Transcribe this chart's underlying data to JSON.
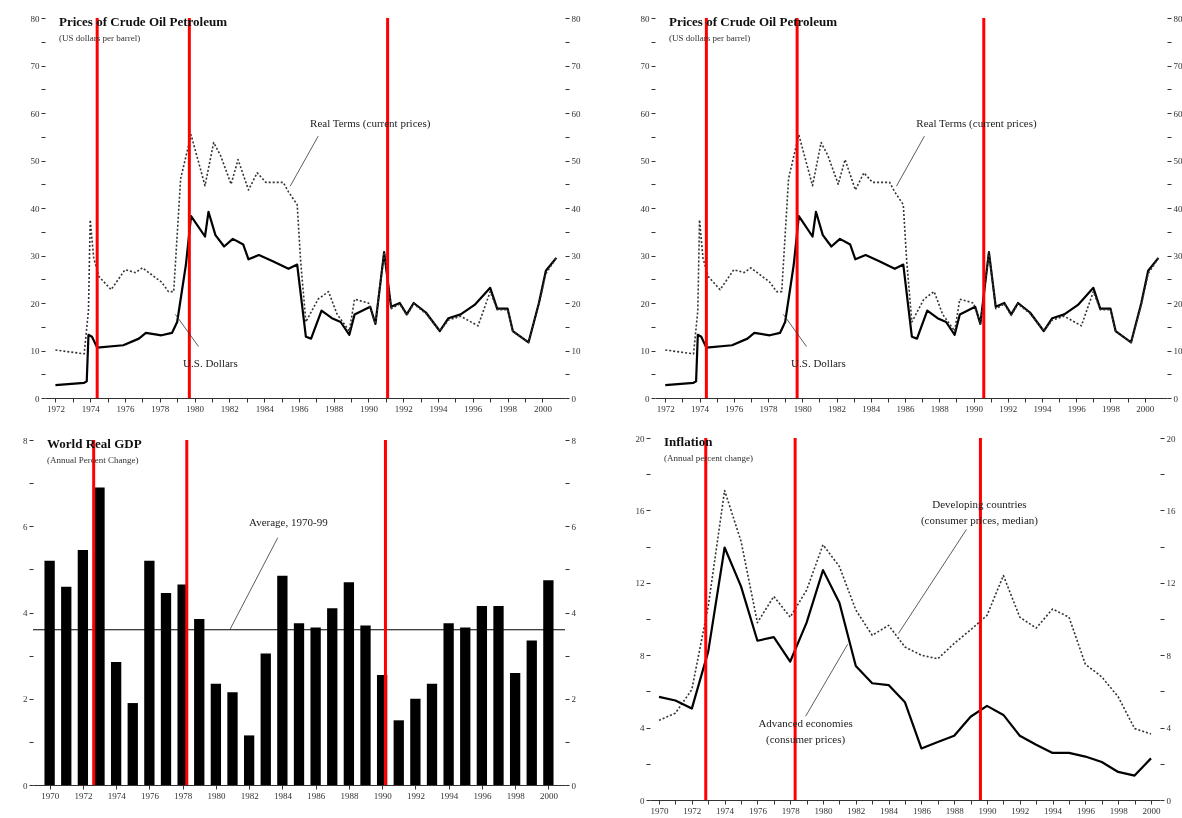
{
  "chart_data": [
    {
      "type": "line",
      "title": "Prices of Crude Oil Petroleum",
      "subtitle": "(US dollars per barrel)",
      "series": [
        {
          "color": "#000000",
          "line_style": "solid",
          "x": [
            1972,
            1973.65,
            1973.8,
            1973.9,
            1974.1,
            1974.4,
            1975.9,
            1976.8,
            1977.2,
            1978.1,
            1978.7,
            1979.0,
            1979.5,
            1979.8,
            1980.6,
            1980.8,
            1981.2,
            1981.7,
            1982.2,
            1982.8,
            1983.1,
            1983.7,
            1984.5,
            1985.4,
            1985.9,
            1986.4,
            1986.7,
            1987.3,
            1987.9,
            1988.4,
            1988.9,
            1989.2,
            1990.1,
            1990.4,
            1990.9,
            1991.3,
            1991.8,
            1992.2,
            1992.6,
            1993.3,
            1994.1,
            1994.6,
            1995.3,
            1996.1,
            1997.0,
            1997.4,
            1998.0,
            1998.3,
            1999.2,
            1999.8,
            2000.2,
            2000.8
          ],
          "values": [
            2.7,
            3.2,
            3.5,
            13.3,
            12.9,
            10.6,
            11.1,
            12.5,
            13.7,
            13.2,
            13.7,
            16,
            28,
            38.3,
            34,
            39.2,
            34.3,
            31.9,
            33.5,
            32.3,
            29.2,
            30.1,
            28.8,
            27.2,
            28.1,
            12.9,
            12.5,
            18.4,
            16.8,
            16,
            13.3,
            17.6,
            19.2,
            15.6,
            30.7,
            19.2,
            20,
            17.6,
            20,
            18,
            14.1,
            16.8,
            17.6,
            19.6,
            23.2,
            18.8,
            18.8,
            14.1,
            11.7,
            20,
            26.8,
            29.5
          ]
        },
        {
          "color": "#333333",
          "line_style": "dotted",
          "x": [
            1972,
            1973.65,
            1973.9,
            1974.0,
            1974.2,
            1974.5,
            1975.2,
            1976.0,
            1976.6,
            1977.0,
            1978.1,
            1978.5,
            1978.8,
            1979.2,
            1979.8,
            1980.6,
            1981.1,
            1981.5,
            1982.1,
            1982.5,
            1983.1,
            1983.6,
            1984.1,
            1985.1,
            1985.4,
            1985.9,
            1986.1,
            1986.4,
            1987.1,
            1987.7,
            1988.2,
            1988.9,
            1989.2,
            1990.0,
            1990.4,
            1990.9,
            1991.3,
            1991.8,
            1992.2,
            1992.6,
            1993.3,
            1994.1,
            1994.6,
            1995.3,
            1996.3,
            1997.0,
            1997.4,
            1998.0,
            1998.3,
            1999.2,
            1999.8,
            2000.2,
            2000.8
          ],
          "values": [
            10.1,
            9.3,
            18.4,
            37.5,
            29.5,
            25.6,
            22.8,
            27,
            26.4,
            27.4,
            24.4,
            22.4,
            22.4,
            46.2,
            55.4,
            44.7,
            53.8,
            51,
            45,
            50.2,
            43.8,
            47.4,
            45.4,
            45.4,
            43.4,
            40.7,
            28.8,
            16,
            20.8,
            22.4,
            17.6,
            14.1,
            20.8,
            20,
            15.6,
            30.7,
            18.8,
            19.8,
            17.4,
            19.8,
            17.8,
            14.1,
            16.4,
            17.2,
            15.2,
            22.4,
            18.6,
            18.6,
            14.0,
            11.7,
            19.6,
            26.2,
            29.5
          ]
        }
      ],
      "xlim": [
        1971.4,
        2001.3
      ],
      "xticks": [
        1972,
        {
          "value": 1973,
          "label": null
        },
        1974,
        {
          "value": 1975,
          "label": null
        },
        1976,
        {
          "value": 1977,
          "label": null
        },
        1978,
        {
          "value": 1979,
          "label": null
        },
        1980,
        {
          "value": 1981,
          "label": null
        },
        1982,
        {
          "value": 1983,
          "label": null
        },
        1984,
        {
          "value": 1985,
          "label": null
        },
        1986,
        {
          "value": 1987,
          "label": null
        },
        1988,
        {
          "value": 1989,
          "label": null
        },
        1990,
        {
          "value": 1991,
          "label": null
        },
        1992,
        {
          "value": 1993,
          "label": null
        },
        1994,
        {
          "value": 1995,
          "label": null
        },
        1996,
        {
          "value": 1997,
          "label": null
        },
        1998,
        {
          "value": 1999,
          "label": null
        },
        2000
      ],
      "ylim": [
        0,
        80
      ],
      "yticks": [
        0,
        {
          "value": 5,
          "label": null
        },
        10,
        {
          "value": 15,
          "label": null
        },
        20,
        {
          "value": 25,
          "label": null
        },
        30,
        {
          "value": 35,
          "label": null
        },
        40,
        {
          "value": 45,
          "label": null
        },
        50,
        {
          "value": 55,
          "label": null
        },
        60,
        {
          "value": 65,
          "label": null
        },
        70,
        {
          "value": 75,
          "label": null
        },
        80
      ],
      "y2lim": [
        0,
        80
      ],
      "y2ticks": [
        0,
        {
          "value": 5,
          "label": null
        },
        10,
        {
          "value": 15,
          "label": null
        },
        20,
        {
          "value": 25,
          "label": null
        },
        30,
        {
          "value": 35,
          "label": null
        },
        40,
        {
          "value": 45,
          "label": null
        },
        50,
        {
          "value": 55,
          "label": null
        },
        60,
        {
          "value": 65,
          "label": null
        },
        70,
        {
          "value": 75,
          "label": null
        },
        80
      ],
      "ref_lines": [
        {
          "axis": "x",
          "value": 1974.4,
          "color": "#ff0000"
        },
        {
          "axis": "x",
          "value": 1979.7,
          "color": "#ff0000"
        },
        {
          "axis": "x",
          "value": 1991.1,
          "color": "#ff0000"
        }
      ],
      "annotations": [
        {
          "text": "Real Terms (current prices)",
          "x": 1985.5,
          "y": 44.6
        },
        {
          "text": "U.S. Dollars",
          "x": 1978.9,
          "y": 17.6
        }
      ]
    },
    {
      "type": "line",
      "title": "Prices of Crude Oil Petroleum",
      "subtitle": "(US dollars per barrel)",
      "series": [
        {
          "color": "#000000",
          "line_style": "solid",
          "x": [
            1972,
            1973.65,
            1973.8,
            1973.9,
            1974.1,
            1974.4,
            1975.9,
            1976.8,
            1977.2,
            1978.1,
            1978.7,
            1979.0,
            1979.5,
            1979.8,
            1980.6,
            1980.8,
            1981.2,
            1981.7,
            1982.2,
            1982.8,
            1983.1,
            1983.7,
            1984.5,
            1985.4,
            1985.9,
            1986.4,
            1986.7,
            1987.3,
            1987.9,
            1988.4,
            1988.9,
            1989.2,
            1990.1,
            1990.4,
            1990.9,
            1991.3,
            1991.8,
            1992.2,
            1992.6,
            1993.3,
            1994.1,
            1994.6,
            1995.3,
            1996.1,
            1997.0,
            1997.4,
            1998.0,
            1998.3,
            1999.2,
            1999.8,
            2000.2,
            2000.8
          ],
          "values": [
            2.7,
            3.2,
            3.5,
            13.3,
            12.9,
            10.6,
            11.1,
            12.5,
            13.7,
            13.2,
            13.7,
            16,
            28,
            38.3,
            34,
            39.2,
            34.3,
            31.9,
            33.5,
            32.3,
            29.2,
            30.1,
            28.8,
            27.2,
            28.1,
            12.9,
            12.5,
            18.4,
            16.8,
            16,
            13.3,
            17.6,
            19.2,
            15.6,
            30.7,
            19.2,
            20,
            17.6,
            20,
            18,
            14.1,
            16.8,
            17.6,
            19.6,
            23.2,
            18.8,
            18.8,
            14.1,
            11.7,
            20,
            26.8,
            29.5
          ]
        },
        {
          "color": "#333333",
          "line_style": "dotted",
          "x": [
            1972,
            1973.65,
            1973.9,
            1974.0,
            1974.2,
            1974.5,
            1975.2,
            1976.0,
            1976.6,
            1977.0,
            1978.1,
            1978.5,
            1978.8,
            1979.2,
            1979.8,
            1980.6,
            1981.1,
            1981.5,
            1982.1,
            1982.5,
            1983.1,
            1983.6,
            1984.1,
            1985.1,
            1985.4,
            1985.9,
            1986.1,
            1986.4,
            1987.1,
            1987.7,
            1988.2,
            1988.9,
            1989.2,
            1990.0,
            1990.4,
            1990.9,
            1991.3,
            1991.8,
            1992.2,
            1992.6,
            1993.3,
            1994.1,
            1994.6,
            1995.3,
            1996.3,
            1997.0,
            1997.4,
            1998.0,
            1998.3,
            1999.2,
            1999.8,
            2000.2,
            2000.8
          ],
          "values": [
            10.1,
            9.3,
            18.4,
            37.5,
            29.5,
            25.6,
            22.8,
            27,
            26.4,
            27.4,
            24.4,
            22.4,
            22.4,
            46.2,
            55.4,
            44.7,
            53.8,
            51,
            45,
            50.2,
            43.8,
            47.4,
            45.4,
            45.4,
            43.4,
            40.7,
            28.8,
            16,
            20.8,
            22.4,
            17.6,
            14.1,
            20.8,
            20,
            15.6,
            30.7,
            18.8,
            19.8,
            17.4,
            19.8,
            17.8,
            14.1,
            16.4,
            17.2,
            15.2,
            22.4,
            18.6,
            18.6,
            14.0,
            11.7,
            19.6,
            26.2,
            29.5
          ]
        }
      ],
      "xlim": [
        1971.4,
        2001.3
      ],
      "xticks": [
        1972,
        {
          "value": 1973,
          "label": null
        },
        1974,
        {
          "value": 1975,
          "label": null
        },
        1976,
        {
          "value": 1977,
          "label": null
        },
        1978,
        {
          "value": 1979,
          "label": null
        },
        1980,
        {
          "value": 1981,
          "label": null
        },
        1982,
        {
          "value": 1983,
          "label": null
        },
        1984,
        {
          "value": 1985,
          "label": null
        },
        1986,
        {
          "value": 1987,
          "label": null
        },
        1988,
        {
          "value": 1989,
          "label": null
        },
        1990,
        {
          "value": 1991,
          "label": null
        },
        1992,
        {
          "value": 1993,
          "label": null
        },
        1994,
        {
          "value": 1995,
          "label": null
        },
        1996,
        {
          "value": 1997,
          "label": null
        },
        1998,
        {
          "value": 1999,
          "label": null
        },
        2000
      ],
      "ylim": [
        0,
        80
      ],
      "yticks": [
        0,
        {
          "value": 5,
          "label": null
        },
        10,
        {
          "value": 15,
          "label": null
        },
        20,
        {
          "value": 25,
          "label": null
        },
        30,
        {
          "value": 35,
          "label": null
        },
        40,
        {
          "value": 45,
          "label": null
        },
        50,
        {
          "value": 55,
          "label": null
        },
        60,
        {
          "value": 65,
          "label": null
        },
        70,
        {
          "value": 75,
          "label": null
        },
        80
      ],
      "y2lim": [
        0,
        80
      ],
      "y2ticks": [
        0,
        {
          "value": 5,
          "label": null
        },
        10,
        {
          "value": 15,
          "label": null
        },
        20,
        {
          "value": 25,
          "label": null
        },
        30,
        {
          "value": 35,
          "label": null
        },
        40,
        {
          "value": 45,
          "label": null
        },
        50,
        {
          "value": 55,
          "label": null
        },
        60,
        {
          "value": 65,
          "label": null
        },
        70,
        {
          "value": 75,
          "label": null
        },
        80
      ],
      "ref_lines": [
        {
          "axis": "x",
          "value": 1974.4,
          "color": "#ff0000"
        },
        {
          "axis": "x",
          "value": 1979.7,
          "color": "#ff0000"
        },
        {
          "axis": "x",
          "value": 1990.6,
          "color": "#ff0000"
        }
      ],
      "annotations": [
        {
          "text": "Real Terms (current prices)",
          "x": 1985.5,
          "y": 44.6
        },
        {
          "text": "U.S. Dollars",
          "x": 1978.9,
          "y": 17.6
        }
      ]
    },
    {
      "type": "bar",
      "title": "World Real GDP",
      "subtitle": "(Annual Percent Change)",
      "x": [
        1970,
        1971,
        1972,
        1973,
        1974,
        1975,
        1976,
        1977,
        1978,
        1979,
        1980,
        1981,
        1982,
        1983,
        1984,
        1985,
        1986,
        1987,
        1988,
        1989,
        1990,
        1991,
        1992,
        1993,
        1994,
        1995,
        1996,
        1997,
        1998,
        1999,
        2000
      ],
      "series": [
        {
          "color": "#000000",
          "values": [
            5.2,
            4.6,
            5.45,
            6.9,
            2.85,
            1.9,
            5.2,
            4.45,
            4.65,
            3.85,
            2.35,
            2.15,
            1.15,
            3.05,
            4.85,
            3.75,
            3.65,
            4.1,
            4.7,
            3.7,
            2.55,
            1.5,
            2.0,
            2.35,
            3.75,
            3.65,
            4.15,
            4.15,
            2.6,
            3.35,
            4.75
          ]
        }
      ],
      "xlim": [
        1969,
        2001
      ],
      "xticks": [
        1970,
        1972,
        1974,
        1976,
        1978,
        1980,
        1982,
        1984,
        1986,
        1988,
        1990,
        1992,
        1994,
        1996,
        1998,
        2000
      ],
      "ylim": [
        0,
        8
      ],
      "yticks": [
        0,
        {
          "value": 1,
          "label": null
        },
        2,
        {
          "value": 3,
          "label": null
        },
        4,
        {
          "value": 5,
          "label": null
        },
        6,
        {
          "value": 7,
          "label": null
        },
        8
      ],
      "y2lim": [
        0,
        8
      ],
      "y2ticks": [
        0,
        {
          "value": 1,
          "label": null
        },
        2,
        {
          "value": 3,
          "label": null
        },
        4,
        {
          "value": 5,
          "label": null
        },
        6,
        {
          "value": 7,
          "label": null
        },
        8
      ],
      "ref_lines": [
        {
          "axis": "y",
          "value": 3.6,
          "label": "Average, 1970-99",
          "color": "#000000"
        },
        {
          "axis": "x",
          "value": 1972.65,
          "color": "#ff0000"
        },
        {
          "axis": "x",
          "value": 1978.25,
          "color": "#ff0000"
        },
        {
          "axis": "x",
          "value": 1990.2,
          "color": "#ff0000"
        }
      ]
    },
    {
      "type": "line",
      "title": "Inflation",
      "subtitle": "(Annual percent change)",
      "x": [
        1970,
        1971,
        1972,
        1973,
        1974,
        1975,
        1976,
        1977,
        1978,
        1979,
        1980,
        1981,
        1982,
        1983,
        1984,
        1985,
        1986,
        1987,
        1988,
        1989,
        1990,
        1991,
        1992,
        1993,
        1994,
        1995,
        1996,
        1997,
        1998,
        1999,
        2000
      ],
      "series": [
        {
          "color": "#333333",
          "line_style": "dotted",
          "values": [
            4.4,
            4.8,
            6.1,
            10.7,
            17.1,
            14.3,
            9.8,
            11.25,
            10.1,
            11.6,
            14.1,
            12.9,
            10.5,
            9.1,
            9.65,
            8.45,
            8.0,
            7.8,
            8.65,
            9.4,
            10.2,
            12.4,
            10.1,
            9.5,
            10.55,
            10.1,
            7.5,
            6.8,
            5.7,
            3.95,
            3.65
          ]
        },
        {
          "color": "#000000",
          "line_style": "solid",
          "values": [
            5.7,
            5.5,
            5.05,
            8.2,
            13.95,
            11.8,
            8.8,
            9.0,
            7.65,
            9.8,
            12.7,
            10.9,
            7.4,
            6.45,
            6.35,
            5.4,
            2.85,
            3.2,
            3.55,
            4.6,
            5.2,
            4.7,
            3.55,
            3.05,
            2.6,
            2.6,
            2.4,
            2.1,
            1.55,
            1.35,
            2.3
          ]
        }
      ],
      "xlim": [
        1969.45,
        2000.55
      ],
      "xticks": [
        1970,
        {
          "value": 1971,
          "label": null
        },
        1972,
        {
          "value": 1973,
          "label": null
        },
        1974,
        {
          "value": 1975,
          "label": null
        },
        1976,
        {
          "value": 1977,
          "label": null
        },
        1978,
        {
          "value": 1979,
          "label": null
        },
        1980,
        {
          "value": 1981,
          "label": null
        },
        1982,
        {
          "value": 1983,
          "label": null
        },
        1984,
        {
          "value": 1985,
          "label": null
        },
        1986,
        {
          "value": 1987,
          "label": null
        },
        1988,
        {
          "value": 1989,
          "label": null
        },
        1990,
        {
          "value": 1991,
          "label": null
        },
        1992,
        {
          "value": 1993,
          "label": null
        },
        1994,
        {
          "value": 1995,
          "label": null
        },
        1996,
        {
          "value": 1997,
          "label": null
        },
        1998,
        {
          "value": 1999,
          "label": null
        },
        2000
      ],
      "ylim": [
        0,
        20
      ],
      "yticks": [
        0,
        {
          "value": 2,
          "label": null
        },
        4,
        {
          "value": 6,
          "label": null
        },
        8,
        {
          "value": 10,
          "label": null
        },
        12,
        {
          "value": 14,
          "label": null
        },
        16,
        {
          "value": 18,
          "label": null
        },
        20
      ],
      "y2lim": [
        0,
        20
      ],
      "y2ticks": [
        0,
        {
          "value": 2,
          "label": null
        },
        4,
        {
          "value": 6,
          "label": null
        },
        8,
        {
          "value": 10,
          "label": null
        },
        12,
        {
          "value": 14,
          "label": null
        },
        16,
        {
          "value": 18,
          "label": null
        },
        20
      ],
      "ref_lines": [
        {
          "axis": "x",
          "value": 1972.85,
          "color": "#ff0000"
        },
        {
          "axis": "x",
          "value": 1978.3,
          "color": "#ff0000"
        },
        {
          "axis": "x",
          "value": 1989.6,
          "color": "#ff0000"
        }
      ],
      "annotations": [
        {
          "text": "Developing countries\n(consumer prices, median)",
          "x": 1984.6,
          "y": 9.2
        },
        {
          "text": "Advanced economies\n(consumer prices)",
          "x": 1981.5,
          "y": 8.6
        }
      ]
    }
  ]
}
